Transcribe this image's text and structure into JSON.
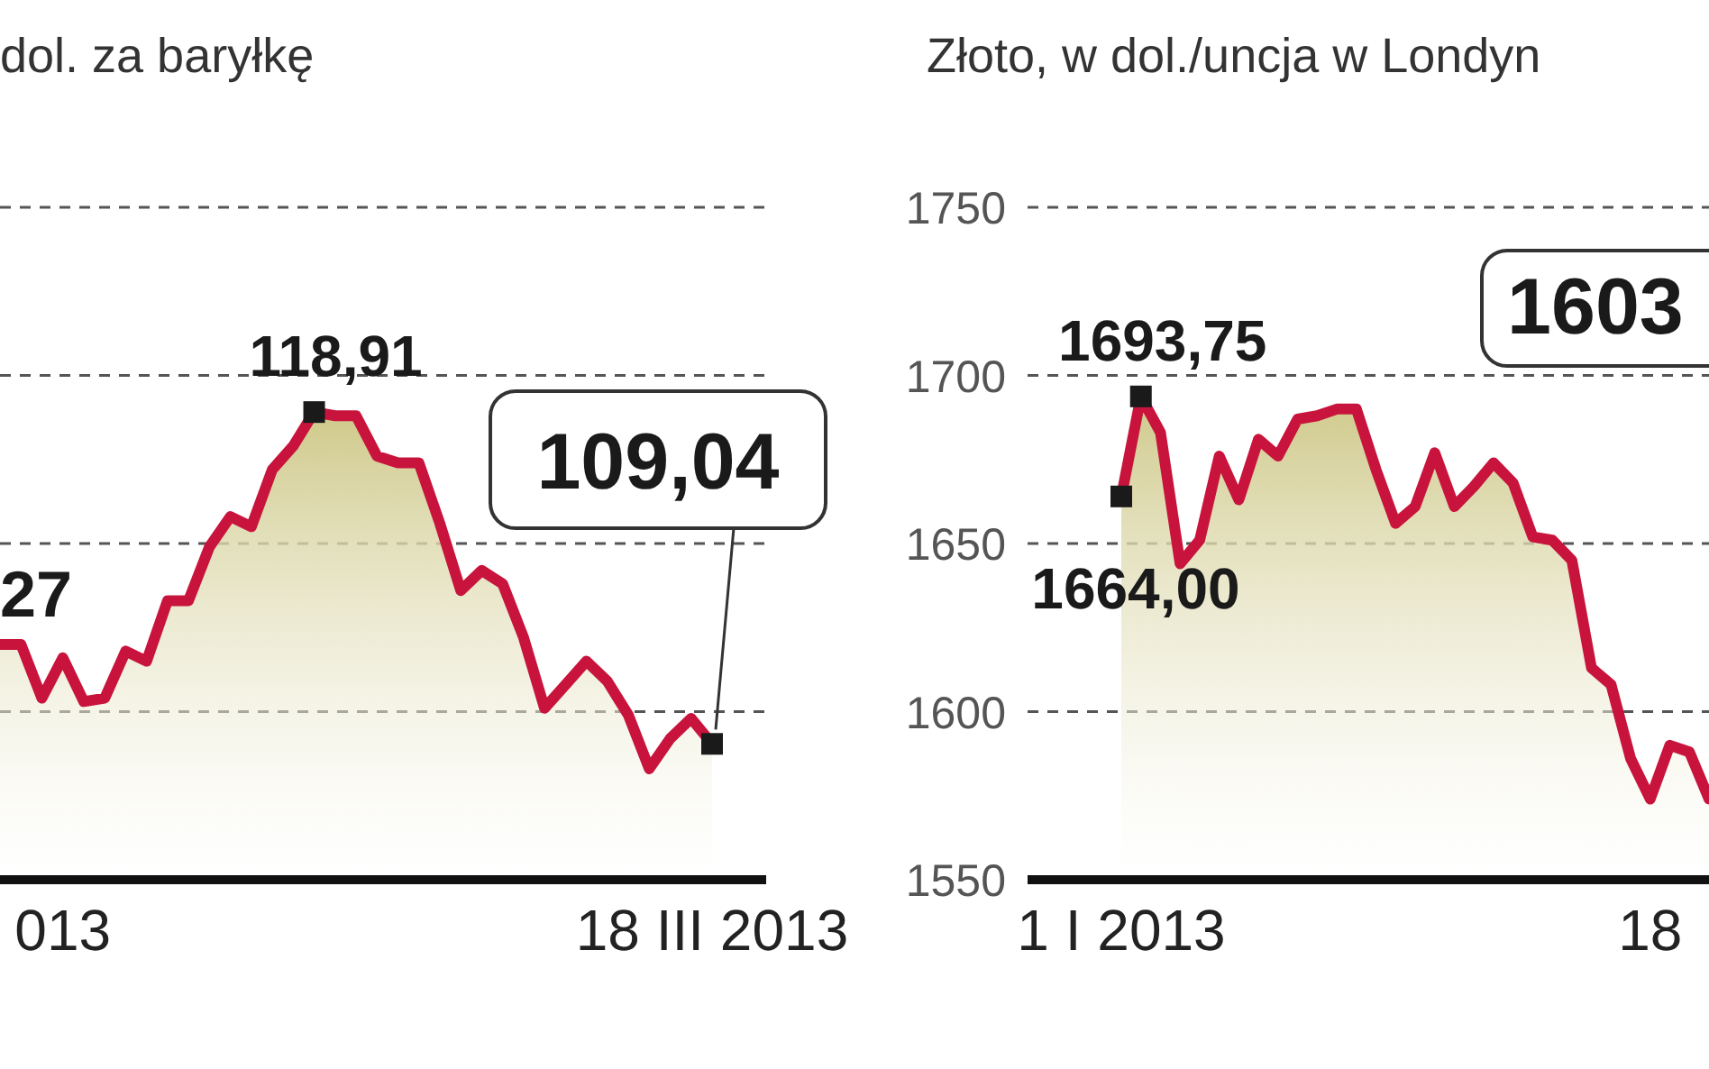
{
  "chart_data": [
    {
      "type": "area",
      "title": "dol. za baryłkę",
      "ylim": [
        105,
        125
      ],
      "yticks": [
        {
          "value": 105,
          "label": null
        },
        {
          "value": 110,
          "label": null
        },
        {
          "value": 115,
          "label": null
        },
        {
          "value": 120,
          "label": null
        },
        {
          "value": 125,
          "label": null
        }
      ],
      "categories": [
        null,
        null,
        null,
        "013",
        null,
        null,
        null,
        null,
        null,
        null,
        null,
        null,
        null,
        null,
        null,
        null,
        null,
        null,
        null,
        null,
        null,
        null,
        null,
        null,
        null,
        null,
        null,
        null,
        null,
        null,
        null,
        null,
        null,
        null,
        "18 III 2013"
      ],
      "tick_labels": "x",
      "grid": "y",
      "annotations": [
        "27"
      ],
      "series": [
        {
          "color": "#c8143c",
          "values": [
            112.0,
            112.0,
            110.4,
            111.6,
            110.3,
            110.4,
            111.8,
            111.5,
            113.3,
            113.3,
            114.9,
            115.8,
            115.5,
            117.2,
            117.9,
            118.91,
            118.8,
            118.8,
            117.6,
            117.4,
            117.4,
            115.6,
            113.6,
            114.2,
            113.8,
            112.2,
            110.1,
            110.8,
            111.5,
            110.9,
            109.9,
            108.3,
            109.2,
            109.8,
            109.04
          ]
        },
        {
          "type": "scatter",
          "marker": "square",
          "color": "#1a1a1a",
          "values": [
            null,
            null,
            null,
            null,
            null,
            null,
            null,
            null,
            null,
            null,
            null,
            null,
            null,
            null,
            null,
            118.91,
            null,
            null,
            null,
            null,
            null,
            null,
            null,
            null,
            null,
            null,
            null,
            null,
            null,
            null,
            null,
            null,
            null,
            null,
            109.04
          ],
          "value_labels": [
            null,
            null,
            null,
            null,
            null,
            null,
            null,
            null,
            null,
            null,
            null,
            null,
            null,
            null,
            null,
            "118,91",
            null,
            null,
            null,
            null,
            null,
            null,
            null,
            null,
            null,
            null,
            null,
            null,
            null,
            null,
            null,
            null,
            null,
            null,
            "109,04"
          ]
        }
      ]
    },
    {
      "type": "area",
      "title": "Złoto, w dol./uncja w Londyn",
      "categories": [
        "1 I 2013",
        null,
        null,
        null,
        null,
        null,
        null,
        null,
        null,
        null,
        null,
        null,
        null,
        null,
        null,
        null,
        null,
        null,
        null,
        null,
        null,
        null,
        null,
        null,
        null,
        null,
        null,
        "18",
        null,
        null,
        null
      ],
      "ylim": [
        1550,
        1750
      ],
      "yticks": [
        1550,
        1600,
        1650,
        1700,
        1750
      ],
      "grid": "y",
      "annotations": [
        "1603"
      ],
      "series": [
        {
          "color": "#c8143c",
          "values": [
            1664.0,
            1693.75,
            1683,
            1644,
            1651,
            1676,
            1663,
            1681,
            1676,
            1687,
            1688,
            1690,
            1690,
            1672,
            1656,
            1661,
            1677,
            1661,
            1667,
            1674,
            1668,
            1652,
            1651,
            1645,
            1613,
            1608,
            1586,
            1574,
            1590,
            1588,
            1574
          ]
        },
        {
          "type": "scatter",
          "marker": "square",
          "color": "#1a1a1a",
          "values": [
            1664.0,
            1693.75,
            null,
            null,
            null,
            null,
            null,
            null,
            null,
            null,
            null,
            null,
            null,
            null,
            null,
            null,
            null,
            null,
            null,
            null,
            null,
            null,
            null,
            null,
            null,
            null,
            null,
            null,
            null,
            null,
            null
          ],
          "value_labels": [
            "1664,00",
            "1693,75",
            null,
            null,
            null,
            null,
            null,
            null,
            null,
            null,
            null,
            null,
            null,
            null,
            null,
            null,
            null,
            null,
            null,
            null,
            null,
            null,
            null,
            null,
            null,
            null,
            null,
            null,
            null,
            null,
            null
          ]
        }
      ]
    }
  ]
}
